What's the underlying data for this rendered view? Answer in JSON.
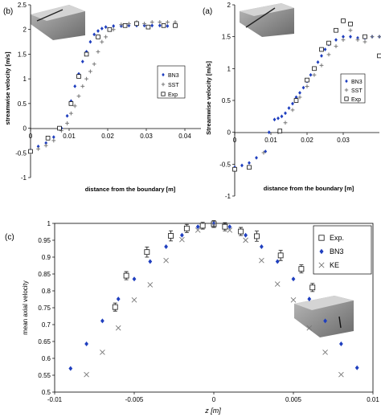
{
  "chart_data": [
    {
      "type": "scatter",
      "panel_label": "(b)",
      "xlabel": "distance from the boundary [m]",
      "ylabel": "streamwise velocity [m/s]",
      "xlim": [
        0,
        0.04
      ],
      "ylim": [
        -1,
        2.5
      ],
      "xticks": [
        "0",
        "0.01",
        "0.02",
        "0.03",
        "0.04"
      ],
      "yticks": [
        "-1",
        "-0.5",
        "0",
        "0.5",
        "1",
        "1.5",
        "2",
        "2.5"
      ],
      "legend_position": "right",
      "series": [
        {
          "name": "BN3",
          "marker": "diamond",
          "x": [
            0.0,
            0.002,
            0.004,
            0.006,
            0.008,
            0.0095,
            0.0105,
            0.0115,
            0.0125,
            0.0135,
            0.0145,
            0.0155,
            0.0165,
            0.0175,
            0.0185,
            0.0195,
            0.0215,
            0.0235,
            0.0255,
            0.0275,
            0.0295,
            0.0315,
            0.0335,
            0.0355,
            0.0375
          ],
          "y": [
            -0.45,
            -0.37,
            -0.3,
            -0.18,
            0.0,
            0.25,
            0.55,
            0.85,
            1.1,
            1.35,
            1.55,
            1.75,
            1.9,
            1.97,
            2.02,
            2.05,
            2.07,
            2.07,
            2.08,
            2.08,
            2.08,
            2.08,
            2.08,
            2.07,
            2.07
          ]
        },
        {
          "name": "SST",
          "marker": "plus",
          "x": [
            0.0,
            0.002,
            0.004,
            0.006,
            0.008,
            0.0095,
            0.0105,
            0.0115,
            0.0125,
            0.0135,
            0.0145,
            0.0155,
            0.0165,
            0.0175,
            0.0185,
            0.0195,
            0.0215,
            0.0235,
            0.0255,
            0.0275,
            0.0295,
            0.0315,
            0.0335,
            0.0355,
            0.0375
          ],
          "y": [
            -0.5,
            -0.42,
            -0.35,
            -0.25,
            -0.05,
            0.1,
            0.3,
            0.45,
            0.65,
            0.85,
            1.0,
            1.15,
            1.3,
            1.55,
            1.75,
            1.85,
            2.0,
            2.1,
            2.12,
            2.15,
            2.12,
            2.15,
            2.15,
            2.15,
            2.15
          ]
        },
        {
          "name": "Exp",
          "marker": "square",
          "x": [
            0.0,
            0.0045,
            0.0075,
            0.0105,
            0.0125,
            0.0145,
            0.0175,
            0.0205,
            0.0245,
            0.0275,
            0.0305,
            0.0345,
            0.0375
          ],
          "y": [
            -0.47,
            -0.2,
            0.0,
            0.5,
            1.05,
            1.5,
            1.85,
            2.0,
            2.08,
            2.12,
            2.05,
            2.08,
            2.08
          ]
        }
      ]
    },
    {
      "type": "scatter",
      "panel_label": "(a)",
      "xlabel": "distance from the boundary [m]",
      "ylabel": "Streamwise velocity [m/s]",
      "xlim": [
        0,
        0.04
      ],
      "ylim": [
        -1,
        2
      ],
      "xticks": [
        "0",
        "0.01",
        "0.02",
        "0.03"
      ],
      "yticks": [
        "-1",
        "-0.5",
        "0",
        "0.5",
        "1",
        "1.5",
        "2"
      ],
      "legend_position": "right",
      "series": [
        {
          "name": "BN3",
          "marker": "diamond",
          "x": [
            0.0,
            0.002,
            0.004,
            0.006,
            0.0085,
            0.0095,
            0.011,
            0.012,
            0.013,
            0.014,
            0.015,
            0.016,
            0.017,
            0.018,
            0.019,
            0.02,
            0.021,
            0.022,
            0.023,
            0.024,
            0.025,
            0.026,
            0.028,
            0.03,
            0.032,
            0.034,
            0.036,
            0.038,
            0.04
          ],
          "y": [
            -0.55,
            -0.52,
            -0.48,
            -0.4,
            -0.3,
            0.0,
            0.2,
            0.22,
            0.25,
            0.3,
            0.38,
            0.45,
            0.55,
            0.62,
            0.7,
            0.8,
            0.9,
            1.0,
            1.1,
            1.2,
            1.3,
            1.38,
            1.45,
            1.5,
            1.5,
            1.48,
            1.48,
            1.5,
            1.5
          ]
        },
        {
          "name": "SST",
          "marker": "plus",
          "x": [
            0.008,
            0.012,
            0.014,
            0.016,
            0.018,
            0.02,
            0.022,
            0.024,
            0.026,
            0.028,
            0.03,
            0.032,
            0.034,
            0.036,
            0.038,
            0.04
          ],
          "y": [
            -0.32,
            0.0,
            0.15,
            0.35,
            0.55,
            0.72,
            0.9,
            1.05,
            1.22,
            1.35,
            1.45,
            1.6,
            1.45,
            1.42,
            1.5,
            1.5
          ]
        },
        {
          "name": "Exp",
          "marker": "square",
          "x": [
            0.0,
            0.004,
            0.0125,
            0.017,
            0.02,
            0.022,
            0.024,
            0.026,
            0.028,
            0.03,
            0.032,
            0.036,
            0.04
          ],
          "y": [
            -0.58,
            -0.55,
            0.02,
            0.5,
            0.82,
            1.0,
            1.3,
            1.4,
            1.6,
            1.75,
            1.7,
            1.5,
            1.2
          ]
        }
      ]
    },
    {
      "type": "scatter",
      "panel_label": "(c)",
      "xlabel": "z [m]",
      "ylabel": "mean axial velocity",
      "xlim": [
        -0.01,
        0.01
      ],
      "ylim": [
        0.5,
        1.0
      ],
      "xticks": [
        "-0.01",
        "-0.005",
        "0",
        "0.005",
        "0.01"
      ],
      "yticks": [
        "0.5",
        "0.55",
        "0.6",
        "0.65",
        "0.7",
        "0.75",
        "0.8",
        "0.85",
        "0.9",
        "0.95",
        "1"
      ],
      "legend_position": "top-right",
      "series": [
        {
          "name": "Exp.",
          "marker": "square_errorbar",
          "x": [
            -0.0062,
            -0.0055,
            -0.0042,
            -0.0027,
            -0.0017,
            -0.0007,
            0.0,
            0.0007,
            0.0017,
            0.0027,
            0.0042,
            0.0055,
            0.0062
          ],
          "y": [
            0.752,
            0.845,
            0.915,
            0.963,
            0.985,
            0.993,
            0.998,
            0.99,
            0.976,
            0.962,
            0.905,
            0.865,
            0.81
          ],
          "err": [
            0.012,
            0.012,
            0.015,
            0.015,
            0.012,
            0.01,
            0.01,
            0.012,
            0.012,
            0.015,
            0.015,
            0.012,
            0.012
          ]
        },
        {
          "name": "BN3",
          "marker": "diamond",
          "x": [
            -0.009,
            -0.008,
            -0.007,
            -0.006,
            -0.005,
            -0.004,
            -0.003,
            -0.002,
            -0.001,
            0.0,
            0.001,
            0.002,
            0.003,
            0.004,
            0.005,
            0.006,
            0.007,
            0.008,
            0.009
          ],
          "y": [
            0.57,
            0.643,
            0.711,
            0.776,
            0.835,
            0.887,
            0.931,
            0.965,
            0.99,
            0.999,
            0.99,
            0.965,
            0.931,
            0.887,
            0.835,
            0.776,
            0.711,
            0.643,
            0.572
          ]
        },
        {
          "name": "KE",
          "marker": "x",
          "x": [
            -0.008,
            -0.007,
            -0.006,
            -0.005,
            -0.004,
            -0.003,
            -0.002,
            -0.001,
            0.0,
            0.001,
            0.002,
            0.003,
            0.004,
            0.005,
            0.006,
            0.007,
            0.008
          ],
          "y": [
            0.552,
            0.618,
            0.69,
            0.773,
            0.818,
            0.89,
            0.952,
            0.98,
            0.995,
            0.98,
            0.95,
            0.89,
            0.82,
            0.773,
            0.69,
            0.618,
            0.552
          ]
        }
      ]
    }
  ]
}
